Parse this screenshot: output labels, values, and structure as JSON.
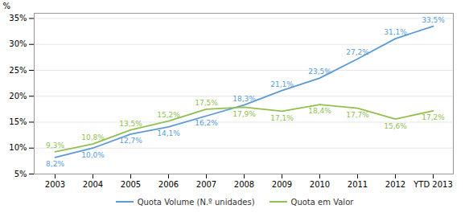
{
  "chart_data": {
    "type": "line",
    "categories": [
      "2003",
      "2004",
      "2005",
      "2006",
      "2007",
      "2008",
      "2009",
      "2010",
      "2011",
      "2012",
      "YTD 2013"
    ],
    "series": [
      {
        "name": "Quota Volume (N.º unidades)",
        "color": "#5b9bd5",
        "values": [
          8.2,
          10.0,
          12.7,
          14.1,
          16.2,
          18.3,
          21.1,
          23.5,
          27.2,
          31.1,
          33.5
        ],
        "value_labels": [
          "8,2%",
          "10,0%",
          "12,7%",
          "14,1%",
          "16,2%",
          "18,3%",
          "21,1%",
          "23,5%",
          "27,2%",
          "31,1%",
          "33,5%"
        ]
      },
      {
        "name": "Quota em Valor",
        "color": "#92c050",
        "values": [
          9.3,
          10.8,
          13.5,
          15.2,
          17.5,
          17.9,
          17.1,
          18.4,
          17.7,
          15.6,
          17.2
        ],
        "value_labels": [
          "9,3%",
          "10,8%",
          "13,5%",
          "15,2%",
          "17,5%",
          "17,9%",
          "17,1%",
          "18,4%",
          "17,7%",
          "15,6%",
          "17,2%"
        ]
      }
    ],
    "ylim": [
      5,
      36
    ],
    "yticks": [
      {
        "value": 5,
        "label": "5%"
      },
      {
        "value": 10,
        "label": "10%"
      },
      {
        "value": 15,
        "label": "15%"
      },
      {
        "value": 20,
        "label": "20%"
      },
      {
        "value": 25,
        "label": "25%"
      },
      {
        "value": 30,
        "label": "30%"
      },
      {
        "value": 35,
        "label": "35%"
      }
    ],
    "ylabel": "%",
    "grid": true,
    "legend": "bottom",
    "data_labels": true
  }
}
